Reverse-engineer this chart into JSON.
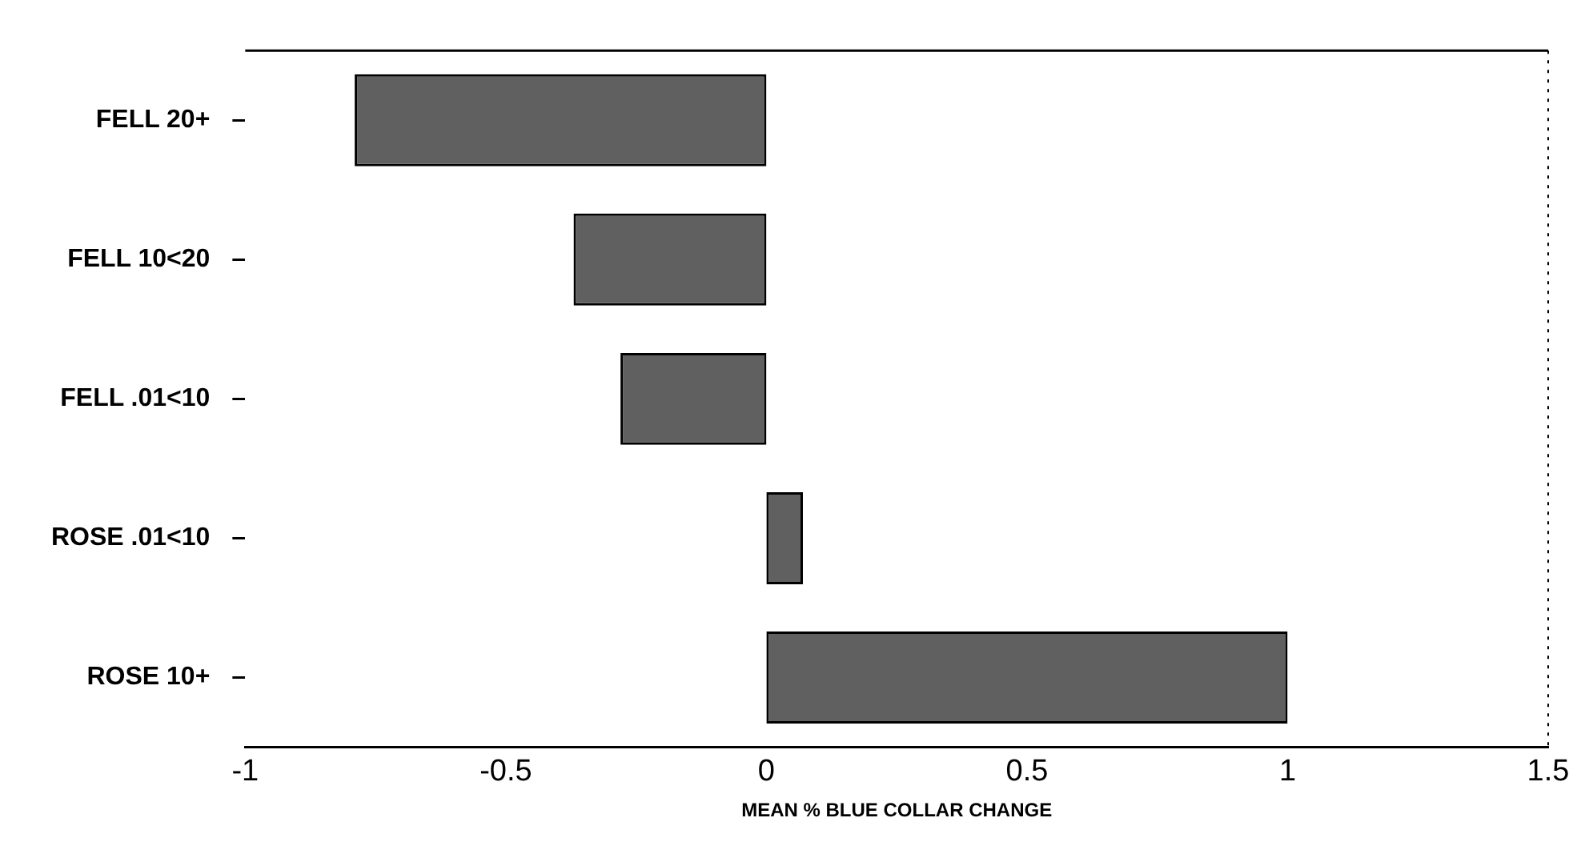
{
  "chart_data": {
    "type": "bar",
    "orientation": "horizontal",
    "xlabel": "MEAN % BLUE COLLAR CHANGE",
    "categories": [
      "FELL 20+",
      "FELL 10<20",
      "FELL .01<10",
      "ROSE .01<10",
      "ROSE 10+"
    ],
    "values": [
      -0.79,
      -0.37,
      -0.28,
      0.07,
      1.0
    ],
    "color": "#606060",
    "xlim": [
      -1,
      1.5
    ],
    "xticks": [
      -1,
      -0.5,
      0,
      0.5,
      1,
      1.5
    ],
    "grid": false,
    "legend": false
  }
}
